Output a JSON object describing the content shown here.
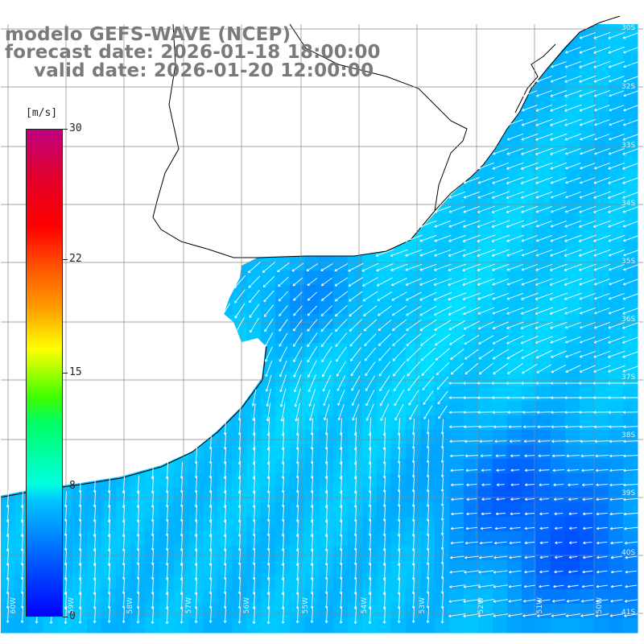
{
  "header": {
    "model": "modelo GEFS-WAVE (NCEP)",
    "forecast_date": "forecast date: 2026-01-18 18:00:00",
    "valid_date": "valid date: 2026-01-20 12:00:00"
  },
  "colorbar": {
    "unit": "[m/s]",
    "ticks": [
      "30",
      "22",
      "15",
      "8",
      "0"
    ],
    "tick_values": [
      30,
      22,
      15,
      8,
      0
    ],
    "min": 0,
    "max": 30,
    "colors": [
      "#0000ff",
      "#0060ff",
      "#00c8ff",
      "#00ffe0",
      "#00ff60",
      "#c8ff00",
      "#ffff00",
      "#ffa000",
      "#ff0000",
      "#c00080"
    ]
  },
  "map": {
    "lat_labels": [
      "30S",
      "32S",
      "33S",
      "34S",
      "35S",
      "36S",
      "37S",
      "38S",
      "39S",
      "40S",
      "41S"
    ],
    "lon_labels": [
      "60W",
      "59W",
      "58W",
      "57W",
      "56W",
      "55W",
      "54W",
      "53W",
      "52W",
      "51W",
      "50W"
    ],
    "land_color": "#ffffff",
    "grid_color": "#888888",
    "coast_color": "#000000",
    "arrow_color": "#ffffff"
  }
}
